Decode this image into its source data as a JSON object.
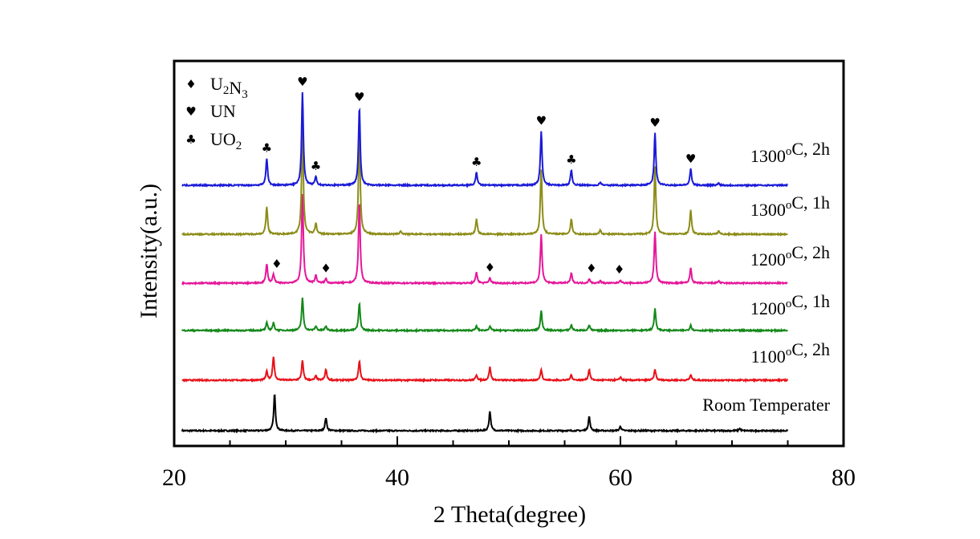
{
  "chart_data": {
    "type": "line",
    "xlabel": "2 Theta(degree)",
    "ylabel": "Intensity(a.u.)",
    "xlim": [
      20,
      80
    ],
    "xticks": [
      20,
      40,
      60,
      80
    ],
    "x_range_plotted": [
      20.7,
      75
    ],
    "y_ticks_shown": false,
    "grid": false,
    "legend_position": "top-left",
    "legend": [
      {
        "symbol": "♦",
        "icon": "diamond",
        "label_parts": [
          [
            "U",
            "normal"
          ],
          [
            "2",
            "sub"
          ],
          [
            "N",
            "normal"
          ],
          [
            "3",
            "sub"
          ]
        ]
      },
      {
        "symbol": "♥",
        "icon": "heart",
        "label_parts": [
          [
            "UN",
            "normal"
          ]
        ]
      },
      {
        "symbol": "♣",
        "icon": "club",
        "label_parts": [
          [
            "UO",
            "normal"
          ],
          [
            "2",
            "sub"
          ]
        ]
      }
    ],
    "series": [
      {
        "name": "Room Temperater",
        "label_parts": [
          [
            "Room Temperater",
            "normal"
          ]
        ],
        "color": "#000000",
        "peaks": [
          {
            "x": 29.0,
            "h": 0.34
          },
          {
            "x": 33.6,
            "h": 0.12
          },
          {
            "x": 48.3,
            "h": 0.18
          },
          {
            "x": 57.2,
            "h": 0.13
          },
          {
            "x": 60.0,
            "h": 0.04
          },
          {
            "x": 70.7,
            "h": 0.02
          }
        ]
      },
      {
        "name": "1100°C, 2h",
        "label_parts": [
          [
            "1100",
            "normal"
          ],
          [
            "o",
            "sup"
          ],
          [
            "C, 2h",
            "normal"
          ]
        ],
        "color": "#e8121a",
        "peaks": [
          {
            "x": 28.3,
            "h": 0.08
          },
          {
            "x": 28.9,
            "h": 0.22
          },
          {
            "x": 31.5,
            "h": 0.18
          },
          {
            "x": 32.7,
            "h": 0.04
          },
          {
            "x": 33.6,
            "h": 0.1
          },
          {
            "x": 36.6,
            "h": 0.18
          },
          {
            "x": 47.1,
            "h": 0.05
          },
          {
            "x": 48.3,
            "h": 0.12
          },
          {
            "x": 52.9,
            "h": 0.1
          },
          {
            "x": 55.6,
            "h": 0.05
          },
          {
            "x": 57.2,
            "h": 0.1
          },
          {
            "x": 60.0,
            "h": 0.03
          },
          {
            "x": 63.1,
            "h": 0.1
          },
          {
            "x": 66.3,
            "h": 0.05
          }
        ]
      },
      {
        "name": "1200°C, 1h",
        "label_parts": [
          [
            "1200",
            "normal"
          ],
          [
            "o",
            "sup"
          ],
          [
            "C, 1h",
            "normal"
          ]
        ],
        "color": "#15891a",
        "peaks": [
          {
            "x": 28.3,
            "h": 0.07
          },
          {
            "x": 28.9,
            "h": 0.07
          },
          {
            "x": 31.5,
            "h": 0.3
          },
          {
            "x": 32.7,
            "h": 0.04
          },
          {
            "x": 33.6,
            "h": 0.04
          },
          {
            "x": 36.6,
            "h": 0.25
          },
          {
            "x": 47.1,
            "h": 0.04
          },
          {
            "x": 48.3,
            "h": 0.04
          },
          {
            "x": 52.9,
            "h": 0.18
          },
          {
            "x": 55.6,
            "h": 0.05
          },
          {
            "x": 57.2,
            "h": 0.05
          },
          {
            "x": 63.1,
            "h": 0.2
          },
          {
            "x": 66.3,
            "h": 0.05
          }
        ]
      },
      {
        "name": "1200°C, 2h",
        "label_parts": [
          [
            "1200",
            "normal"
          ],
          [
            "o",
            "sup"
          ],
          [
            "C, 2h",
            "normal"
          ]
        ],
        "color": "#e5179a",
        "peaks": [
          {
            "x": 28.3,
            "h": 0.18
          },
          {
            "x": 28.9,
            "h": 0.08
          },
          {
            "x": 31.5,
            "h": 0.82
          },
          {
            "x": 32.7,
            "h": 0.07
          },
          {
            "x": 33.6,
            "h": 0.04
          },
          {
            "x": 36.6,
            "h": 0.75
          },
          {
            "x": 47.1,
            "h": 0.1
          },
          {
            "x": 48.3,
            "h": 0.05
          },
          {
            "x": 52.9,
            "h": 0.45
          },
          {
            "x": 55.6,
            "h": 0.09
          },
          {
            "x": 57.2,
            "h": 0.04
          },
          {
            "x": 58.2,
            "h": 0.02
          },
          {
            "x": 60.0,
            "h": 0.03
          },
          {
            "x": 63.1,
            "h": 0.48
          },
          {
            "x": 66.3,
            "h": 0.14
          },
          {
            "x": 68.8,
            "h": 0.02
          }
        ]
      },
      {
        "name": "1300°C, 1h",
        "label_parts": [
          [
            "1300",
            "normal"
          ],
          [
            "o",
            "sup"
          ],
          [
            "C, 1h",
            "normal"
          ]
        ],
        "color": "#8c8c18",
        "peaks": [
          {
            "x": 28.3,
            "h": 0.25
          },
          {
            "x": 31.5,
            "h": 0.98
          },
          {
            "x": 32.7,
            "h": 0.1
          },
          {
            "x": 36.6,
            "h": 0.95
          },
          {
            "x": 40.3,
            "h": 0.03
          },
          {
            "x": 47.1,
            "h": 0.14
          },
          {
            "x": 52.9,
            "h": 0.6
          },
          {
            "x": 55.6,
            "h": 0.14
          },
          {
            "x": 58.2,
            "h": 0.04
          },
          {
            "x": 63.1,
            "h": 0.62
          },
          {
            "x": 66.3,
            "h": 0.22
          },
          {
            "x": 68.8,
            "h": 0.03
          }
        ]
      },
      {
        "name": "1300°C, 2h",
        "label_parts": [
          [
            "1300",
            "normal"
          ],
          [
            "o",
            "sup"
          ],
          [
            "C, 2h",
            "normal"
          ]
        ],
        "color": "#1a1ad8",
        "peaks": [
          {
            "x": 28.3,
            "h": 0.25
          },
          {
            "x": 31.5,
            "h": 0.86
          },
          {
            "x": 32.7,
            "h": 0.08
          },
          {
            "x": 36.6,
            "h": 0.72
          },
          {
            "x": 47.1,
            "h": 0.12
          },
          {
            "x": 52.9,
            "h": 0.5
          },
          {
            "x": 55.6,
            "h": 0.14
          },
          {
            "x": 58.2,
            "h": 0.03
          },
          {
            "x": 63.1,
            "h": 0.48
          },
          {
            "x": 66.3,
            "h": 0.15
          },
          {
            "x": 68.8,
            "h": 0.02
          }
        ]
      }
    ],
    "annotations": [
      {
        "series": "1300°C, 2h",
        "symbol": "♣",
        "icon": "club",
        "x": 28.3
      },
      {
        "series": "1300°C, 2h",
        "symbol": "♥",
        "icon": "heart",
        "x": 31.5
      },
      {
        "series": "1300°C, 2h",
        "symbol": "♣",
        "icon": "club",
        "x": 32.7
      },
      {
        "series": "1300°C, 2h",
        "symbol": "♥",
        "icon": "heart",
        "x": 36.6
      },
      {
        "series": "1300°C, 2h",
        "symbol": "♣",
        "icon": "club",
        "x": 47.1
      },
      {
        "series": "1300°C, 2h",
        "symbol": "♥",
        "icon": "heart",
        "x": 52.9
      },
      {
        "series": "1300°C, 2h",
        "symbol": "♣",
        "icon": "club",
        "x": 55.6
      },
      {
        "series": "1300°C, 2h",
        "symbol": "♥",
        "icon": "heart",
        "x": 63.1
      },
      {
        "series": "1300°C, 2h",
        "symbol": "♥",
        "icon": "heart",
        "x": 66.3
      },
      {
        "series": "1200°C, 2h",
        "symbol": "♦",
        "icon": "diamond",
        "x": 29.2
      },
      {
        "series": "1200°C, 2h",
        "symbol": "♦",
        "icon": "diamond",
        "x": 33.6
      },
      {
        "series": "1200°C, 2h",
        "symbol": "♦",
        "icon": "diamond",
        "x": 48.3
      },
      {
        "series": "1200°C, 2h",
        "symbol": "♦",
        "icon": "diamond",
        "x": 57.4
      },
      {
        "series": "1200°C, 2h",
        "symbol": "♦",
        "icon": "diamond",
        "x": 59.9
      }
    ]
  }
}
